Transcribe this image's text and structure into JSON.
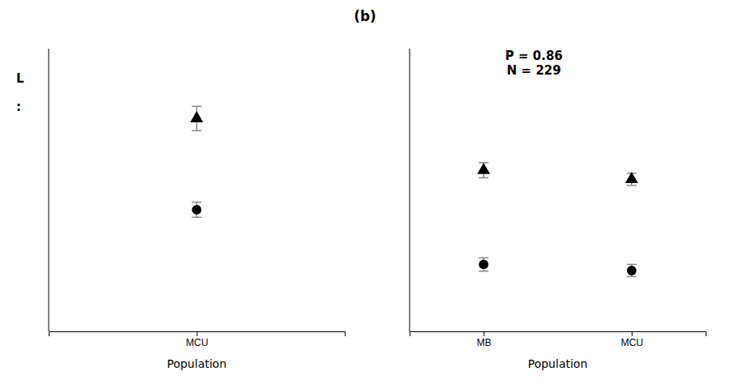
{
  "chart_data": [
    {
      "type": "scatter",
      "xlabel": "Population",
      "categories": [
        "MCU"
      ],
      "series": [
        {
          "marker": "triangle",
          "color": "black",
          "values": [
            0.75
          ],
          "errors": [
            0.04
          ]
        },
        {
          "marker": "circle",
          "color": "black",
          "values": [
            0.45
          ],
          "errors": [
            0.025
          ]
        }
      ],
      "ylim": [
        0.05,
        0.98
      ],
      "tick_labels": "x",
      "grid": false,
      "annotations": [
        "L",
        ":"
      ]
    },
    {
      "type": "scatter",
      "title": "(b)",
      "xlabel": "Population",
      "categories": [
        "MB",
        "MCU"
      ],
      "series": [
        {
          "marker": "triangle",
          "color": "black",
          "values": [
            0.58,
            0.55
          ],
          "errors": [
            0.025,
            0.02
          ]
        },
        {
          "marker": "circle",
          "color": "black",
          "values": [
            0.27,
            0.25
          ],
          "errors": [
            0.022,
            0.02
          ]
        }
      ],
      "ylim": [
        0.05,
        0.98
      ],
      "tick_labels": "x",
      "grid": false,
      "annotations": [
        "P = 0.86\nN = 229"
      ]
    }
  ]
}
